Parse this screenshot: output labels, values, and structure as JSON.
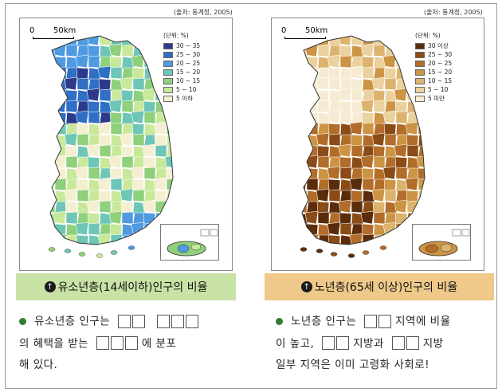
{
  "left": {
    "source": "(출처: 통계청, 2005)",
    "scale_zero": "0",
    "scale_dist": "50km",
    "legend_unit": "(단위: %)",
    "legend": [
      {
        "label": "30 ~ 35",
        "color": "#2d3a8c"
      },
      {
        "label": "25 ~ 30",
        "color": "#2f6fc4"
      },
      {
        "label": "20 ~ 25",
        "color": "#4f9ae0"
      },
      {
        "label": "15 ~ 20",
        "color": "#6ec6b8"
      },
      {
        "label": "10 ~ 15",
        "color": "#8fd07c"
      },
      {
        "label": "5 ~ 10",
        "color": "#c8e89a"
      },
      {
        "label": "5 이하",
        "color": "#f5efd2"
      }
    ],
    "caption_mark": "↑",
    "caption": "유소년층(14세이하)인구의 비율",
    "caption_color": "#c9e2a5",
    "text_part1": "유소년층 인구는",
    "text_part2": "의 혜택을 받는",
    "text_part3": "에 분포",
    "text_part4": "해 있다."
  },
  "right": {
    "source": "(출처: 통계청, 2005)",
    "scale_zero": "0",
    "scale_dist": "50km",
    "legend_unit": "(단위: %)",
    "legend": [
      {
        "label": "30 이상",
        "color": "#5b2c0c"
      },
      {
        "label": "25 ~ 30",
        "color": "#8a4b16"
      },
      {
        "label": "20 ~ 25",
        "color": "#b26d2a"
      },
      {
        "label": "15 ~ 20",
        "color": "#cc9445"
      },
      {
        "label": "10 ~ 15",
        "color": "#dcb36e"
      },
      {
        "label": "5 ~ 10",
        "color": "#ebd19d"
      },
      {
        "label": "5 미만",
        "color": "#f6ebd2"
      }
    ],
    "caption_mark": "↑",
    "caption": "노년층(65세 이상)인구의 비율",
    "caption_color": "#eec98a",
    "text_part1": "노년층 인구는",
    "text_part2": "지역에 비율",
    "text_part3": "이 높고,",
    "text_part4": "지방과",
    "text_part5": "지방",
    "text_part6": "일부 지역은 이미 고령화 사회로!"
  }
}
